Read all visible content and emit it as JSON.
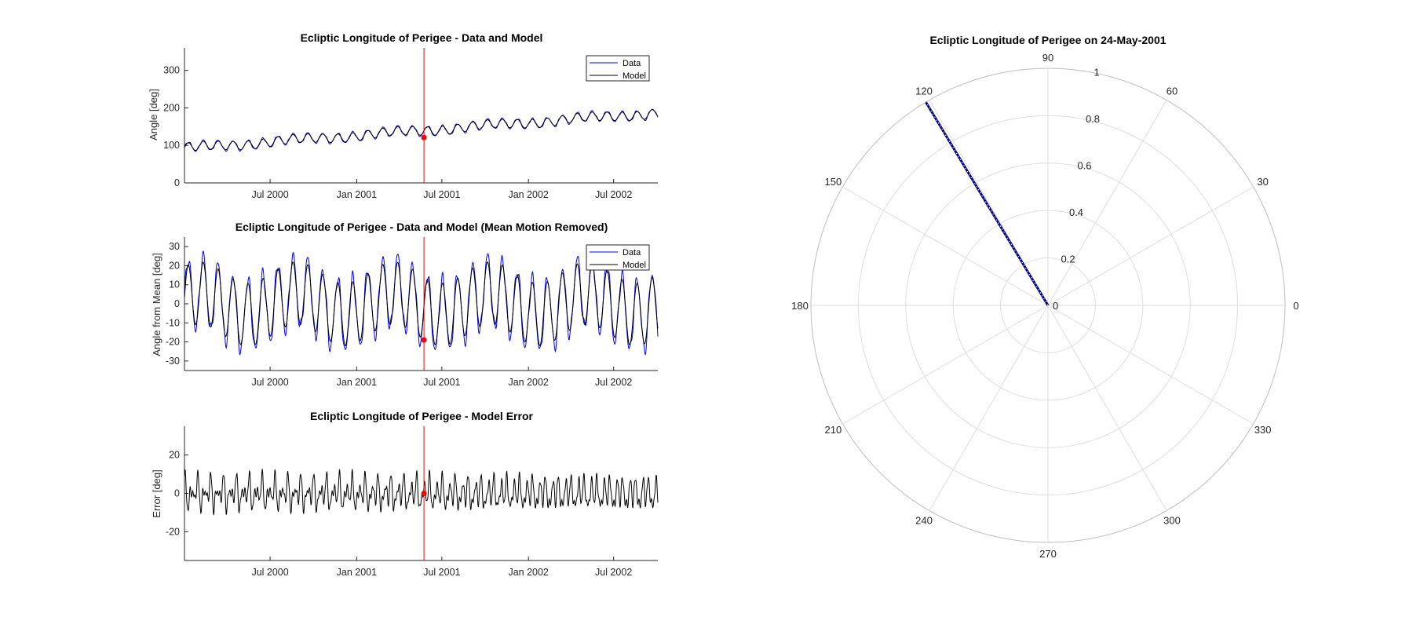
{
  "chart_data": [
    {
      "type": "line",
      "title": "Ecliptic Longitude of Perigee - Data and Model",
      "ylabel": "Angle [deg]",
      "ylim": [
        0,
        360
      ],
      "yticks": [
        0,
        100,
        200,
        300
      ],
      "xlim": [
        "2000-01-01",
        "2002-10-03"
      ],
      "xtick_labels": [
        "Jul 2000",
        "Jan 2001",
        "Jul 2001",
        "Jan 2002",
        "Jul 2002"
      ],
      "legend": {
        "entries": [
          "Data",
          "Model"
        ],
        "position": "top-right"
      },
      "series": [
        {
          "name": "Data",
          "color": "#0000ff",
          "trend": {
            "start": 92,
            "end": 187
          },
          "amplitude": 16
        },
        {
          "name": "Model",
          "color": "#000000",
          "trend": {
            "start": 92,
            "end": 187
          },
          "amplitude": 14
        }
      ],
      "current_date": "2001-05-24",
      "marker_value": 121
    },
    {
      "type": "line",
      "title": "Ecliptic Longitude of Perigee - Data and Model (Mean Motion Removed)",
      "ylabel": "Angle from Mean [deg]",
      "ylim": [
        -35,
        35
      ],
      "yticks": [
        -30,
        -20,
        -10,
        0,
        10,
        20,
        30
      ],
      "xlim": [
        "2000-01-01",
        "2002-10-03"
      ],
      "xtick_labels": [
        "Jul 2000",
        "Jan 2001",
        "Jul 2001",
        "Jan 2002",
        "Jul 2002"
      ],
      "legend": {
        "entries": [
          "Data",
          "Model"
        ],
        "position": "top-right"
      },
      "series": [
        {
          "name": "Data",
          "color": "#0000ff",
          "amplitude": 23
        },
        {
          "name": "Model",
          "color": "#000000",
          "amplitude": 20
        }
      ],
      "current_date": "2001-05-24",
      "marker_value": -19
    },
    {
      "type": "line",
      "title": "Ecliptic Longitude of Perigee - Model Error",
      "ylabel": "Error [deg]",
      "ylim": [
        -35,
        35
      ],
      "yticks": [
        -20,
        0,
        20
      ],
      "xlim": [
        "2000-01-01",
        "2002-10-03"
      ],
      "xtick_labels": [
        "Jul 2000",
        "Jan 2001",
        "Jul 2001",
        "Jan 2002",
        "Jul 2002"
      ],
      "series": [
        {
          "color": "#000000",
          "range": [
            -12,
            12
          ]
        }
      ],
      "current_date": "2001-05-24",
      "marker_value": 0
    },
    {
      "type": "polar",
      "title": "Ecliptic Longitude of Perigee on 24-May-2001",
      "rlim": [
        0,
        1
      ],
      "rticks": [
        "0",
        "0.2",
        "0.4",
        "0.6",
        "0.8",
        "1"
      ],
      "theta_ticks": [
        "0",
        "30",
        "60",
        "90",
        "120",
        "150",
        "180",
        "210",
        "240",
        "270",
        "300",
        "330"
      ],
      "vector": {
        "angle_deg": 121,
        "magnitude": 1,
        "color": "#000080",
        "style": "dotted"
      }
    }
  ]
}
